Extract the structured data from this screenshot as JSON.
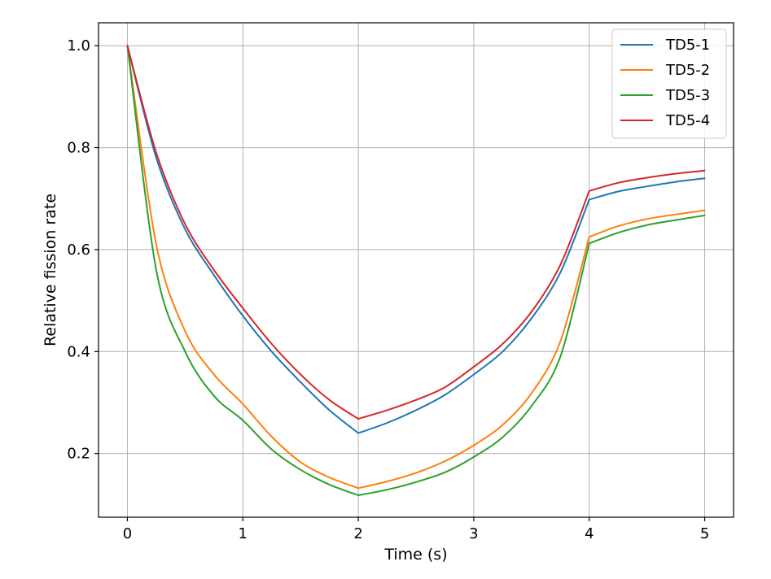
{
  "chart_data": {
    "type": "line",
    "xlabel": "Time (s)",
    "ylabel": "Relative fission rate",
    "xlim": [
      -0.25,
      5.25
    ],
    "ylim": [
      0.075,
      1.045
    ],
    "xticks": [
      0,
      1,
      2,
      3,
      4,
      5
    ],
    "xtick_labels": [
      "0",
      "1",
      "2",
      "3",
      "4",
      "5"
    ],
    "yticks": [
      0.2,
      0.4,
      0.6,
      0.8,
      1.0
    ],
    "ytick_labels": [
      "0.2",
      "0.4",
      "0.6",
      "0.8",
      "1.0"
    ],
    "grid": true,
    "legend_position": "top-right",
    "x": [
      0,
      0.25,
      0.5,
      0.75,
      1.0,
      1.25,
      1.5,
      1.75,
      2.0,
      2.25,
      2.5,
      2.75,
      3.0,
      3.25,
      3.5,
      3.75,
      4.0,
      4.25,
      4.5,
      4.75,
      5.0
    ],
    "series": [
      {
        "name": "TD5-1",
        "color": "#1f77b4",
        "values": [
          1.0,
          0.78,
          0.64,
          0.55,
          0.47,
          0.4,
          0.34,
          0.285,
          0.24,
          0.26,
          0.285,
          0.315,
          0.355,
          0.4,
          0.465,
          0.555,
          0.698,
          0.714,
          0.724,
          0.733,
          0.74
        ]
      },
      {
        "name": "TD5-2",
        "color": "#ff7f0e",
        "values": [
          1.0,
          0.61,
          0.44,
          0.355,
          0.297,
          0.233,
          0.183,
          0.153,
          0.132,
          0.145,
          0.162,
          0.185,
          0.216,
          0.256,
          0.318,
          0.42,
          0.625,
          0.646,
          0.66,
          0.669,
          0.677
        ]
      },
      {
        "name": "TD5-3",
        "color": "#2ca02c",
        "values": [
          1.0,
          0.56,
          0.4,
          0.313,
          0.265,
          0.208,
          0.168,
          0.139,
          0.118,
          0.129,
          0.144,
          0.163,
          0.193,
          0.232,
          0.293,
          0.39,
          0.612,
          0.633,
          0.648,
          0.658,
          0.667
        ]
      },
      {
        "name": "TD5-4",
        "color": "#d62728",
        "values": [
          1.0,
          0.79,
          0.65,
          0.56,
          0.485,
          0.415,
          0.355,
          0.305,
          0.268,
          0.285,
          0.305,
          0.33,
          0.37,
          0.415,
          0.478,
          0.57,
          0.715,
          0.731,
          0.741,
          0.749,
          0.755
        ]
      }
    ]
  }
}
